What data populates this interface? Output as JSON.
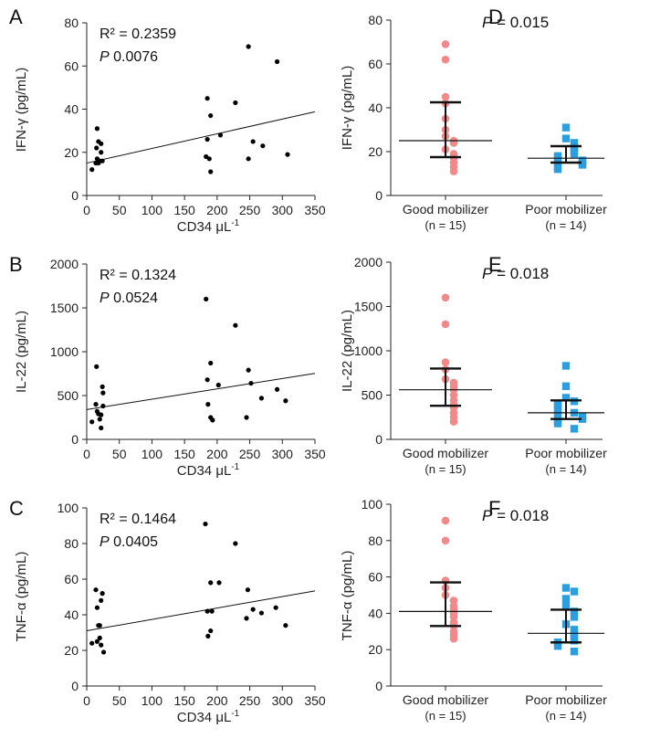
{
  "colors": {
    "axis": "#222222",
    "scatter_point": "#000000",
    "good_mobilizer": "#f08a8a",
    "poor_mobilizer": "#2a9ee0"
  },
  "chart_data": [
    {
      "panel": "A",
      "type": "scatter",
      "ylabel": "IFN-γ (pg/mL)",
      "xlabel_main": "CD34 ",
      "xlabel_unit": "μL",
      "xlabel_sup": "-1",
      "xlim": [
        0,
        350
      ],
      "xticks": [
        0,
        50,
        100,
        150,
        200,
        250,
        300,
        350
      ],
      "ylim": [
        0,
        80
      ],
      "yticks": [
        0,
        20,
        40,
        60,
        80
      ],
      "stats": [
        {
          "label": "R² = 0.2359",
          "italic": false
        },
        {
          "label": "P",
          "value": "  0.0076",
          "italic": true
        }
      ],
      "regression": {
        "intercept": 15,
        "slope": 0.068
      },
      "points": [
        [
          8,
          12
        ],
        [
          14,
          15
        ],
        [
          18,
          15
        ],
        [
          16,
          17
        ],
        [
          20,
          16
        ],
        [
          22,
          20
        ],
        [
          15,
          22
        ],
        [
          18,
          25
        ],
        [
          22,
          24
        ],
        [
          24,
          16
        ],
        [
          16,
          31
        ],
        [
          185,
          45
        ],
        [
          190,
          37
        ],
        [
          185,
          26
        ],
        [
          183,
          18
        ],
        [
          188,
          17
        ],
        [
          190,
          11
        ],
        [
          205,
          28
        ],
        [
          228,
          43
        ],
        [
          248,
          69
        ],
        [
          255,
          25
        ],
        [
          248,
          17
        ],
        [
          270,
          23
        ],
        [
          292,
          62
        ],
        [
          308,
          19
        ]
      ]
    },
    {
      "panel": "B",
      "type": "scatter",
      "ylabel": "IL-22 (pg/mL)",
      "xlabel_main": "CD34 ",
      "xlabel_unit": "μL",
      "xlabel_sup": "-1",
      "xlim": [
        0,
        350
      ],
      "xticks": [
        0,
        50,
        100,
        150,
        200,
        250,
        300,
        350
      ],
      "ylim": [
        0,
        2000
      ],
      "yticks": [
        0,
        500,
        1000,
        1500,
        2000
      ],
      "stats": [
        {
          "label": "R² = 0.1324",
          "italic": false
        },
        {
          "label": "P",
          "value": "  0.0524",
          "italic": true
        }
      ],
      "regression": {
        "intercept": 340,
        "slope": 1.18
      },
      "points": [
        [
          8,
          200
        ],
        [
          15,
          830
        ],
        [
          18,
          290
        ],
        [
          20,
          230
        ],
        [
          22,
          280
        ],
        [
          25,
          380
        ],
        [
          24,
          600
        ],
        [
          25,
          530
        ],
        [
          22,
          130
        ],
        [
          16,
          320
        ],
        [
          14,
          400
        ],
        [
          183,
          1600
        ],
        [
          185,
          680
        ],
        [
          190,
          870
        ],
        [
          186,
          400
        ],
        [
          190,
          250
        ],
        [
          193,
          220
        ],
        [
          202,
          620
        ],
        [
          228,
          1300
        ],
        [
          248,
          790
        ],
        [
          252,
          640
        ],
        [
          245,
          250
        ],
        [
          268,
          470
        ],
        [
          292,
          570
        ],
        [
          305,
          440
        ]
      ]
    },
    {
      "panel": "C",
      "type": "scatter",
      "ylabel": "TNF-α (pg/mL)",
      "xlabel_main": "CD34 ",
      "xlabel_unit": "μL",
      "xlabel_sup": "-1",
      "xlim": [
        0,
        350
      ],
      "xticks": [
        0,
        50,
        100,
        150,
        200,
        250,
        300,
        350
      ],
      "ylim": [
        0,
        100
      ],
      "yticks": [
        0,
        20,
        40,
        60,
        80,
        100
      ],
      "stats": [
        {
          "label": "R² = 0.1464",
          "italic": false
        },
        {
          "label": "P",
          "value": "  0.0405",
          "italic": true
        }
      ],
      "regression": {
        "intercept": 31,
        "slope": 0.064
      },
      "points": [
        [
          8,
          24
        ],
        [
          14,
          54
        ],
        [
          16,
          44
        ],
        [
          18,
          34
        ],
        [
          20,
          27
        ],
        [
          22,
          48
        ],
        [
          24,
          52
        ],
        [
          22,
          23
        ],
        [
          26,
          19
        ],
        [
          16,
          25
        ],
        [
          20,
          34
        ],
        [
          182,
          91
        ],
        [
          185,
          42
        ],
        [
          190,
          58
        ],
        [
          186,
          28
        ],
        [
          190,
          31
        ],
        [
          192,
          42
        ],
        [
          203,
          58
        ],
        [
          228,
          80
        ],
        [
          247,
          54
        ],
        [
          255,
          43
        ],
        [
          245,
          38
        ],
        [
          268,
          41
        ],
        [
          290,
          44
        ],
        [
          305,
          34
        ]
      ]
    },
    {
      "panel": "D",
      "type": "dot",
      "title_p": "P",
      "title_value": " = 0.015",
      "ylabel": "IFN-γ (pg/mL)",
      "ylim": [
        0,
        80
      ],
      "yticks": [
        0,
        20,
        40,
        60,
        80
      ],
      "categories": [
        {
          "name": "Good mobilizer",
          "n": "(n = 15)",
          "shape": "circle",
          "median": 25,
          "q1": 17.5,
          "q3": 42.5,
          "values": [
            69,
            62,
            45,
            42,
            35,
            30,
            27,
            25,
            24,
            21,
            19,
            17,
            15,
            13,
            11
          ]
        },
        {
          "name": "Poor mobilizer",
          "n": "(n = 14)",
          "shape": "square",
          "median": 17,
          "q1": 15,
          "q3": 22.5,
          "values": [
            31,
            26,
            24,
            22,
            20,
            19,
            18,
            17,
            16,
            16,
            15,
            14,
            13,
            12
          ]
        }
      ]
    },
    {
      "panel": "E",
      "type": "dot",
      "title_p": "P",
      "title_value": " = 0.018",
      "ylabel": "IL-22 (pg/mL)",
      "ylim": [
        0,
        2000
      ],
      "yticks": [
        0,
        500,
        1000,
        1500,
        2000
      ],
      "categories": [
        {
          "name": "Good mobilizer",
          "n": "(n = 15)",
          "shape": "circle",
          "median": 560,
          "q1": 380,
          "q3": 800,
          "values": [
            1600,
            1300,
            870,
            790,
            680,
            640,
            600,
            560,
            500,
            440,
            390,
            360,
            300,
            250,
            200
          ]
        },
        {
          "name": "Poor mobilizer",
          "n": "(n = 14)",
          "shape": "square",
          "median": 300,
          "q1": 230,
          "q3": 440,
          "values": [
            830,
            600,
            470,
            430,
            400,
            380,
            330,
            300,
            280,
            260,
            230,
            200,
            180,
            120
          ]
        }
      ]
    },
    {
      "panel": "F",
      "type": "dot",
      "title_p": "P",
      "title_value": " = 0.018",
      "ylabel": "TNF-α (pg/mL)",
      "ylim": [
        0,
        100
      ],
      "yticks": [
        0,
        20,
        40,
        60,
        80,
        100
      ],
      "categories": [
        {
          "name": "Good mobilizer",
          "n": "(n = 15)",
          "shape": "circle",
          "median": 41,
          "q1": 33,
          "q3": 57,
          "values": [
            91,
            80,
            58,
            54,
            50,
            47,
            44,
            42,
            40,
            38,
            35,
            33,
            30,
            28,
            26
          ]
        },
        {
          "name": "Poor mobilizer",
          "n": "(n = 14)",
          "shape": "square",
          "median": 29,
          "q1": 24,
          "q3": 42,
          "values": [
            54,
            52,
            48,
            44,
            41,
            38,
            34,
            31,
            29,
            27,
            25,
            24,
            22,
            19
          ]
        }
      ]
    }
  ]
}
